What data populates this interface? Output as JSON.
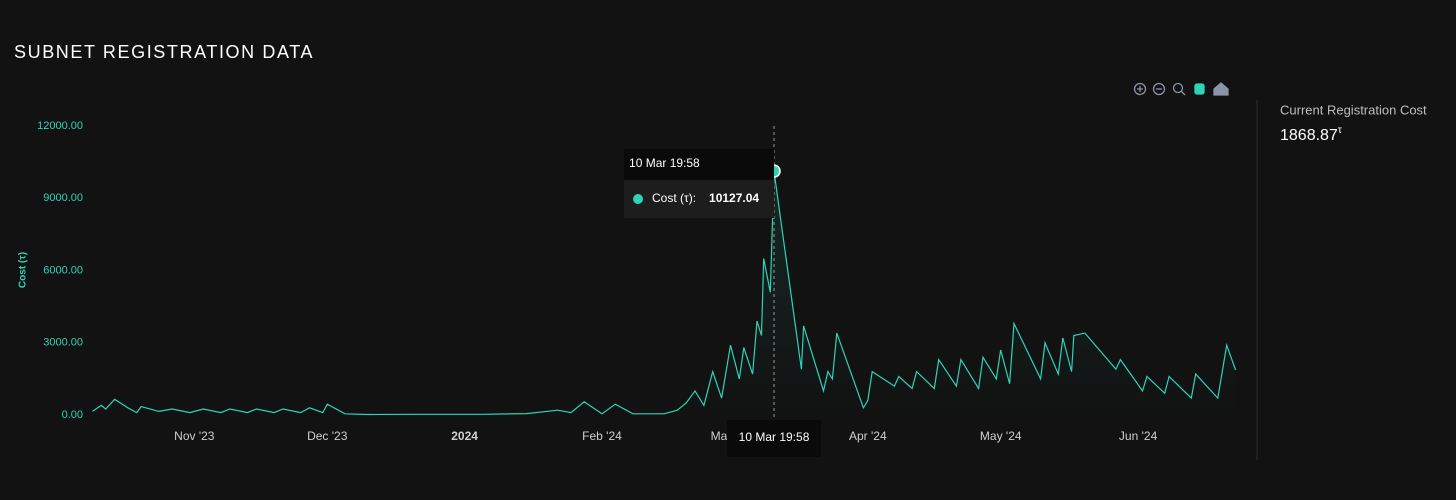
{
  "title": "SUBNET REGISTRATION DATA",
  "side_panel": {
    "label": "Current Registration Cost",
    "value": "1868.87",
    "unit": "τ"
  },
  "chart_data": {
    "type": "line",
    "y_label": "Cost (τ)",
    "xlim": [
      "2023-10-08",
      "2024-06-24"
    ],
    "ylim": [
      0,
      12000
    ],
    "yticks": [
      {
        "value": 0,
        "label": "0.00"
      },
      {
        "value": 3000,
        "label": "3000.00"
      },
      {
        "value": 6000,
        "label": "6000.00"
      },
      {
        "value": 9000,
        "label": "9000.00"
      },
      {
        "value": 12000,
        "label": "12000.00"
      }
    ],
    "xticks": [
      {
        "value": "2023-11-01",
        "label": "Nov '23"
      },
      {
        "value": "2023-12-01",
        "label": "Dec '23"
      },
      {
        "value": "2024-01-01",
        "label": "2024"
      },
      {
        "value": "2024-02-01",
        "label": "Feb '24"
      },
      {
        "value": "2024-03-01",
        "label": "Mar '24"
      },
      {
        "value": "2024-04-01",
        "label": "Apr '24"
      },
      {
        "value": "2024-05-01",
        "label": "May '24"
      },
      {
        "value": "2024-06-01",
        "label": "Jun '24"
      }
    ],
    "x": [
      "2023-10-09",
      "2023-10-11",
      "2023-10-12",
      "2023-10-14",
      "2023-10-17",
      "2023-10-19",
      "2023-10-20",
      "2023-10-24",
      "2023-10-27",
      "2023-10-31",
      "2023-11-03",
      "2023-11-07",
      "2023-11-09",
      "2023-11-13",
      "2023-11-15",
      "2023-11-19",
      "2023-11-21",
      "2023-11-25",
      "2023-11-27",
      "2023-11-30",
      "2023-12-01",
      "2023-12-05",
      "2023-12-10",
      "2023-12-20",
      "2024-01-05",
      "2024-01-15",
      "2024-01-22",
      "2024-01-25",
      "2024-01-28",
      "2024-02-01",
      "2024-02-04",
      "2024-02-08",
      "2024-02-15",
      "2024-02-18",
      "2024-02-20",
      "2024-02-22",
      "2024-02-24",
      "2024-02-26",
      "2024-02-28",
      "2024-03-01",
      "2024-03-03",
      "2024-03-04",
      "2024-03-06",
      "2024-03-07",
      "2024-03-08",
      "2024-03-08T12:00",
      "2024-03-10",
      "2024-03-10T19:58",
      "2024-03-17",
      "2024-03-17T12:00",
      "2024-03-22",
      "2024-03-23",
      "2024-03-24",
      "2024-03-25",
      "2024-03-31",
      "2024-04-01",
      "2024-04-02",
      "2024-04-07",
      "2024-04-08",
      "2024-04-11",
      "2024-04-12",
      "2024-04-16",
      "2024-04-17",
      "2024-04-21",
      "2024-04-22",
      "2024-04-26",
      "2024-04-27",
      "2024-04-30",
      "2024-05-01",
      "2024-05-03",
      "2024-05-04",
      "2024-05-10",
      "2024-05-11",
      "2024-05-14",
      "2024-05-15",
      "2024-05-17",
      "2024-05-17T12:00",
      "2024-05-20",
      "2024-05-27",
      "2024-05-28",
      "2024-06-02",
      "2024-06-03",
      "2024-06-07",
      "2024-06-08",
      "2024-06-13",
      "2024-06-14",
      "2024-06-19",
      "2024-06-21",
      "2024-06-23"
    ],
    "series": [
      {
        "name": "Cost (τ)",
        "color": "#2fd3b6",
        "values": [
          150,
          400,
          250,
          650,
          300,
          100,
          350,
          150,
          250,
          100,
          250,
          100,
          250,
          100,
          250,
          100,
          250,
          100,
          300,
          100,
          450,
          50,
          20,
          30,
          30,
          60,
          200,
          100,
          550,
          50,
          450,
          50,
          50,
          200,
          500,
          1000,
          400,
          1800,
          700,
          2900,
          1500,
          2800,
          1700,
          3900,
          3300,
          6500,
          5100,
          10127.04,
          1900,
          3700,
          1000,
          1800,
          1500,
          3400,
          300,
          600,
          1800,
          1200,
          1600,
          1100,
          1800,
          1100,
          2300,
          1200,
          2300,
          1100,
          2400,
          1500,
          2700,
          1300,
          3800,
          1500,
          3000,
          1700,
          3200,
          1800,
          3300,
          3400,
          1900,
          2300,
          1000,
          1600,
          900,
          1600,
          700,
          1700,
          700,
          2900,
          1868.87
        ]
      }
    ],
    "tooltip": {
      "index": 47,
      "label": "10 Mar 19:58",
      "series_label": "Cost (τ):"
    }
  }
}
